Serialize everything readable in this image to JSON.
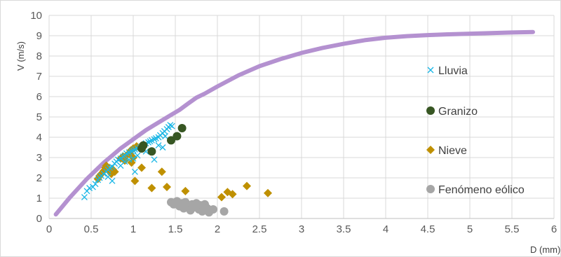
{
  "chart_data": {
    "type": "scatter",
    "xlabel": "D (mm)",
    "ylabel": "V (m/s)",
    "xlim": [
      0,
      6
    ],
    "ylim": [
      0,
      10
    ],
    "xticks": [
      "0",
      "0.5",
      "1",
      "1.5",
      "2",
      "2.5",
      "3",
      "3.5",
      "4",
      "4.5",
      "5",
      "5.5",
      "6"
    ],
    "yticks": [
      "0",
      "1",
      "2",
      "3",
      "4",
      "5",
      "6",
      "7",
      "8",
      "9",
      "10"
    ],
    "grid": true,
    "legend_position": "right",
    "reference_curve": {
      "color": "#b491d0",
      "points": [
        [
          0.08,
          0.2
        ],
        [
          0.15,
          0.55
        ],
        [
          0.25,
          1.05
        ],
        [
          0.35,
          1.5
        ],
        [
          0.45,
          1.95
        ],
        [
          0.55,
          2.35
        ],
        [
          0.65,
          2.75
        ],
        [
          0.75,
          3.1
        ],
        [
          0.85,
          3.45
        ],
        [
          0.95,
          3.75
        ],
        [
          1.05,
          4.05
        ],
        [
          1.15,
          4.35
        ],
        [
          1.25,
          4.6
        ],
        [
          1.35,
          4.85
        ],
        [
          1.45,
          5.1
        ],
        [
          1.55,
          5.35
        ],
        [
          1.65,
          5.65
        ],
        [
          1.75,
          5.95
        ],
        [
          1.85,
          6.15
        ],
        [
          2.0,
          6.5
        ],
        [
          2.25,
          7.05
        ],
        [
          2.5,
          7.5
        ],
        [
          2.75,
          7.85
        ],
        [
          3.0,
          8.15
        ],
        [
          3.25,
          8.4
        ],
        [
          3.5,
          8.6
        ],
        [
          3.75,
          8.78
        ],
        [
          4.0,
          8.9
        ],
        [
          4.25,
          8.98
        ],
        [
          4.5,
          9.03
        ],
        [
          4.75,
          9.07
        ],
        [
          5.0,
          9.1
        ],
        [
          5.25,
          9.13
        ],
        [
          5.5,
          9.16
        ],
        [
          5.75,
          9.18
        ]
      ]
    },
    "series": [
      {
        "name": "Lluvia",
        "color": "#19b6e6",
        "marker": "x",
        "points": [
          [
            0.42,
            1.05
          ],
          [
            0.45,
            1.35
          ],
          [
            0.48,
            1.5
          ],
          [
            0.52,
            1.55
          ],
          [
            0.55,
            1.7
          ],
          [
            0.58,
            1.9
          ],
          [
            0.6,
            2.0
          ],
          [
            0.62,
            2.1
          ],
          [
            0.65,
            2.2
          ],
          [
            0.68,
            2.3
          ],
          [
            0.7,
            2.4
          ],
          [
            0.72,
            2.5
          ],
          [
            0.75,
            1.85
          ],
          [
            0.75,
            2.55
          ],
          [
            0.78,
            2.7
          ],
          [
            0.8,
            2.8
          ],
          [
            0.82,
            2.9
          ],
          [
            0.85,
            2.95
          ],
          [
            0.85,
            2.6
          ],
          [
            0.88,
            3.05
          ],
          [
            0.9,
            3.1
          ],
          [
            0.9,
            2.8
          ],
          [
            0.92,
            3.2
          ],
          [
            0.95,
            3.25
          ],
          [
            0.95,
            2.9
          ],
          [
            0.98,
            3.3
          ],
          [
            1.0,
            3.35
          ],
          [
            1.0,
            2.95
          ],
          [
            1.02,
            3.4
          ],
          [
            1.05,
            3.45
          ],
          [
            1.05,
            3.1
          ],
          [
            1.08,
            3.5
          ],
          [
            1.1,
            3.55
          ],
          [
            1.12,
            3.6
          ],
          [
            1.15,
            3.7
          ],
          [
            1.18,
            3.75
          ],
          [
            1.2,
            3.8
          ],
          [
            1.22,
            3.85
          ],
          [
            1.25,
            3.9
          ],
          [
            1.27,
            3.95
          ],
          [
            1.3,
            4.0
          ],
          [
            1.32,
            4.1
          ],
          [
            1.35,
            4.2
          ],
          [
            1.37,
            4.3
          ],
          [
            1.4,
            4.4
          ],
          [
            1.42,
            4.5
          ],
          [
            1.44,
            4.6
          ],
          [
            1.46,
            4.55
          ],
          [
            1.25,
            2.9
          ],
          [
            1.35,
            3.5
          ],
          [
            1.3,
            3.6
          ],
          [
            1.02,
            2.3
          ],
          [
            1.15,
            3.3
          ],
          [
            0.7,
            2.05
          ],
          [
            1.38,
            4.05
          ]
        ]
      },
      {
        "name": "Granizo",
        "color": "#375623",
        "marker": "circle",
        "points": [
          [
            1.1,
            3.45
          ],
          [
            1.12,
            3.6
          ],
          [
            1.22,
            3.3
          ],
          [
            1.45,
            3.85
          ],
          [
            1.52,
            4.05
          ],
          [
            1.58,
            4.45
          ]
        ]
      },
      {
        "name": "Nieve",
        "color": "#bf9000",
        "marker": "diamond",
        "points": [
          [
            0.58,
            1.95
          ],
          [
            0.6,
            2.1
          ],
          [
            0.62,
            2.2
          ],
          [
            0.65,
            2.35
          ],
          [
            0.67,
            2.5
          ],
          [
            0.7,
            2.4
          ],
          [
            0.72,
            2.3
          ],
          [
            0.74,
            2.2
          ],
          [
            0.76,
            2.4
          ],
          [
            0.78,
            2.3
          ],
          [
            0.68,
            2.6
          ],
          [
            0.85,
            2.95
          ],
          [
            0.88,
            3.05
          ],
          [
            0.9,
            2.85
          ],
          [
            0.92,
            3.1
          ],
          [
            0.95,
            3.2
          ],
          [
            0.97,
            3.35
          ],
          [
            1.0,
            3.45
          ],
          [
            0.98,
            2.75
          ],
          [
            1.0,
            3.0
          ],
          [
            1.02,
            1.85
          ],
          [
            1.04,
            3.55
          ],
          [
            1.1,
            2.5
          ],
          [
            1.22,
            1.5
          ],
          [
            1.34,
            2.3
          ],
          [
            1.4,
            1.55
          ],
          [
            1.62,
            1.35
          ],
          [
            2.05,
            1.05
          ],
          [
            2.12,
            1.3
          ],
          [
            2.18,
            1.2
          ],
          [
            2.35,
            1.6
          ],
          [
            2.6,
            1.25
          ]
        ]
      },
      {
        "name": "Fenómeno eólico",
        "color": "#a6a6a6",
        "marker": "circle",
        "points": [
          [
            1.45,
            0.8
          ],
          [
            1.48,
            0.7
          ],
          [
            1.52,
            0.85
          ],
          [
            1.55,
            0.6
          ],
          [
            1.58,
            0.75
          ],
          [
            1.6,
            0.5
          ],
          [
            1.62,
            0.8
          ],
          [
            1.65,
            0.65
          ],
          [
            1.68,
            0.4
          ],
          [
            1.7,
            0.7
          ],
          [
            1.72,
            0.55
          ],
          [
            1.75,
            0.75
          ],
          [
            1.78,
            0.45
          ],
          [
            1.8,
            0.65
          ],
          [
            1.82,
            0.35
          ],
          [
            1.85,
            0.7
          ],
          [
            1.88,
            0.5
          ],
          [
            1.9,
            0.3
          ],
          [
            1.95,
            0.45
          ],
          [
            2.08,
            0.35
          ]
        ]
      }
    ]
  }
}
